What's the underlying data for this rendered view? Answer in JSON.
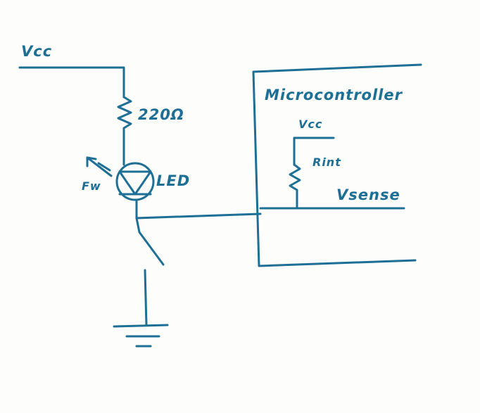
{
  "diagram": {
    "ink_color": "#1d6f96",
    "paper_color": "#fdfdfb",
    "labels": {
      "vcc_main": "Vcc",
      "resistor_value": "220Ω",
      "led_label": "LED",
      "light_symbol": "Fw",
      "mcu_title": "Microcontroller",
      "vcc_internal": "Vcc",
      "internal_resistor": "Rint",
      "sense_net": "Vsense"
    }
  }
}
